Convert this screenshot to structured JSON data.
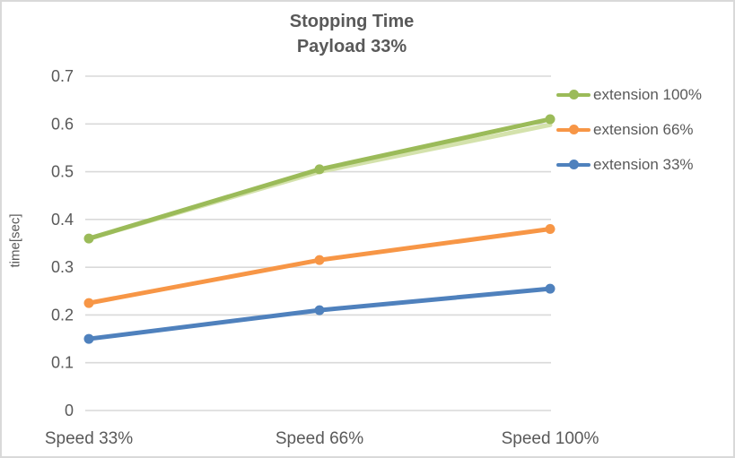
{
  "chart_data": {
    "type": "line",
    "title": "Stopping Time Payload 33%",
    "title_lines": [
      "Stopping Time",
      "Payload 33%"
    ],
    "ylabel": "time[sec]",
    "xlabel": "",
    "categories": [
      "Speed 33%",
      "Speed 66%",
      "Speed 100%"
    ],
    "series": [
      {
        "name": "extension 100%",
        "color": "#9BBB59",
        "values": [
          0.36,
          0.505,
          0.61
        ]
      },
      {
        "name": "extension 66%",
        "color": "#F79646",
        "values": [
          0.225,
          0.315,
          0.38
        ]
      },
      {
        "name": "extension 33%",
        "color": "#4F81BD",
        "values": [
          0.15,
          0.21,
          0.255
        ]
      }
    ],
    "underlay_series": {
      "name": "extension 100% faint duplicate",
      "color": "#D4E2AC",
      "values": [
        0.36,
        0.5,
        0.598
      ]
    },
    "markers": true,
    "grid": true,
    "legend_position": "right",
    "ylim": [
      0,
      0.7
    ],
    "yticks": [
      {
        "value": 0,
        "label": "0"
      },
      {
        "value": 0.1,
        "label": "0.1"
      },
      {
        "value": 0.2,
        "label": "0.2"
      },
      {
        "value": 0.3,
        "label": "0.3"
      },
      {
        "value": 0.4,
        "label": "0.4"
      },
      {
        "value": 0.5,
        "label": "0.5"
      },
      {
        "value": 0.6,
        "label": "0.6"
      },
      {
        "value": 0.7,
        "label": "0.7"
      }
    ],
    "colors": {
      "grid": "#D9D9D9",
      "text": "#595959",
      "background": "#FFFFFF",
      "border": "#D9D9D9"
    }
  }
}
